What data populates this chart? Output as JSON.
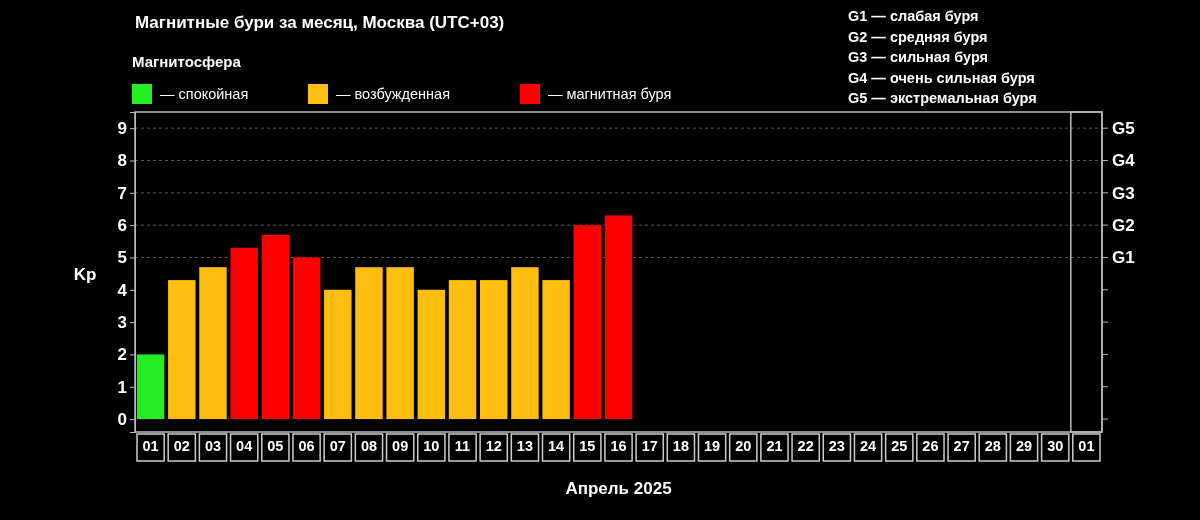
{
  "chart_data": {
    "type": "bar",
    "title": "Магнитные бури за месяц, Москва (UTC+03)",
    "xlabel": "Апрель 2025",
    "ylabel": "Kp",
    "legend_title": "Магнитосфера",
    "legend": "top left",
    "categories": [
      "01",
      "02",
      "03",
      "04",
      "05",
      "06",
      "07",
      "08",
      "09",
      "10",
      "11",
      "12",
      "13",
      "14",
      "15",
      "16",
      "17",
      "18",
      "19",
      "20",
      "21",
      "22",
      "23",
      "24",
      "25",
      "26",
      "27",
      "28",
      "29",
      "30",
      "01"
    ],
    "series": [
      {
        "name": "— спокойная",
        "color": "#22ee22",
        "values": [
          2,
          null,
          null,
          null,
          null,
          null,
          null,
          null,
          null,
          null,
          null,
          null,
          null,
          null,
          null,
          null,
          null,
          null,
          null,
          null,
          null,
          null,
          null,
          null,
          null,
          null,
          null,
          null,
          null,
          null,
          null
        ]
      },
      {
        "name": "— возбужденная",
        "color": "#fdbe0f",
        "values": [
          null,
          4.3,
          4.7,
          null,
          null,
          null,
          4,
          4.7,
          4.7,
          4,
          4.3,
          4.3,
          4.7,
          4.3,
          null,
          null,
          null,
          null,
          null,
          null,
          null,
          null,
          null,
          null,
          null,
          null,
          null,
          null,
          null,
          null,
          null
        ]
      },
      {
        "name": "— магнитная буря",
        "color": "#ff0000",
        "values": [
          null,
          null,
          null,
          5.3,
          5.7,
          5,
          null,
          null,
          null,
          null,
          null,
          null,
          null,
          null,
          6,
          6.3,
          null,
          null,
          null,
          null,
          null,
          null,
          null,
          null,
          null,
          null,
          null,
          null,
          null,
          null,
          null
        ]
      }
    ],
    "ylim": [
      -0.4,
      9.5
    ],
    "yticks": [
      0,
      1,
      2,
      3,
      4,
      5,
      6,
      7,
      8,
      9
    ],
    "ref_lines": [
      {
        "axis": "y",
        "value": 5,
        "label": "G1",
        "line_style": "dashed",
        "color": "#555555"
      },
      {
        "axis": "y",
        "value": 6,
        "label": "G2",
        "line_style": "dashed",
        "color": "#555555"
      },
      {
        "axis": "y",
        "value": 7,
        "label": "G3",
        "line_style": "dashed",
        "color": "#555555"
      },
      {
        "axis": "y",
        "value": 8,
        "label": "G4",
        "line_style": "dashed",
        "color": "#555555"
      },
      {
        "axis": "y",
        "value": 9,
        "label": "G5",
        "line_style": "dashed",
        "color": "#555555"
      }
    ],
    "annotations": [
      "G1 — слабая буря",
      "G2 — средняя буря",
      "G3 — сильная буря",
      "G4 — очень сильная буря",
      "G5 — экстремальная буря"
    ]
  }
}
